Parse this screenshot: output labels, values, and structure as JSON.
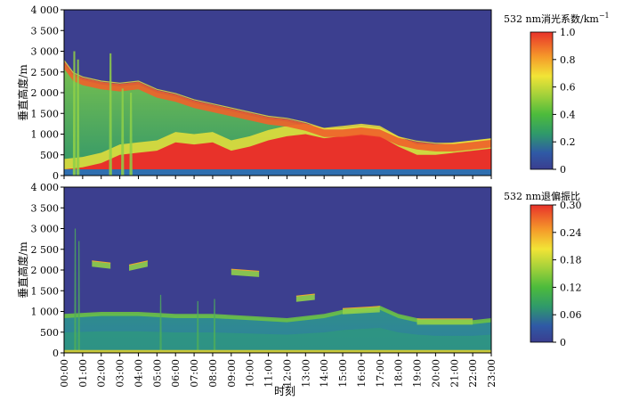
{
  "chart_data": [
    {
      "type": "heatmap",
      "title": "532 nm消光系数/km⁻¹",
      "xlabel": "",
      "ylabel": "垂直高度/m",
      "x_ticks": [
        "00:00",
        "01:00",
        "02:00",
        "03:00",
        "04:00",
        "05:00",
        "06:00",
        "07:00",
        "08:00",
        "09:00",
        "10:00",
        "11:00",
        "12:00",
        "13:00",
        "14:00",
        "15:00",
        "16:00",
        "17:00",
        "18:00",
        "19:00",
        "20:00",
        "21:00",
        "22:00",
        "23:00"
      ],
      "xlim": [
        0,
        23
      ],
      "y_ticks": [
        0,
        500,
        1000,
        1500,
        2000,
        2500,
        3000,
        3500,
        4000
      ],
      "y_tick_labels": [
        "0",
        "500",
        "1 000",
        "1 500",
        "2 000",
        "2 500",
        "3 000",
        "3 500",
        "4 000"
      ],
      "ylim": [
        0,
        4000
      ],
      "colorbar": {
        "label": "532 nm消光系数/km",
        "label_superscript": "−1",
        "range": [
          0,
          1.0
        ],
        "ticks": [
          "0",
          "0.2",
          "0.4",
          "0.6",
          "0.8",
          "1.0"
        ]
      },
      "features": {
        "aerosol_layer_top_m": [
          [
            0,
            2700
          ],
          [
            0.5,
            2400
          ],
          [
            1,
            2300
          ],
          [
            2,
            2200
          ],
          [
            3,
            2150
          ],
          [
            4,
            2200
          ],
          [
            5,
            2000
          ],
          [
            6,
            1900
          ],
          [
            7,
            1750
          ],
          [
            8,
            1650
          ],
          [
            9,
            1550
          ],
          [
            10,
            1450
          ],
          [
            11,
            1350
          ],
          [
            12,
            1300
          ],
          [
            13,
            1200
          ],
          [
            14,
            1050
          ],
          [
            15,
            1050
          ],
          [
            16,
            1100
          ],
          [
            17,
            1050
          ],
          [
            18,
            850
          ],
          [
            19,
            750
          ],
          [
            20,
            700
          ],
          [
            21,
            700
          ],
          [
            22,
            750
          ],
          [
            23,
            800
          ]
        ],
        "dense_layer_top_m": [
          [
            0,
            150
          ],
          [
            1,
            200
          ],
          [
            2,
            300
          ],
          [
            3,
            500
          ],
          [
            4,
            550
          ],
          [
            5,
            600
          ],
          [
            6,
            800
          ],
          [
            7,
            750
          ],
          [
            8,
            800
          ],
          [
            9,
            600
          ],
          [
            10,
            700
          ],
          [
            11,
            850
          ],
          [
            12,
            950
          ],
          [
            13,
            1000
          ],
          [
            14,
            900
          ],
          [
            15,
            950
          ],
          [
            16,
            1000
          ],
          [
            17,
            950
          ],
          [
            18,
            700
          ],
          [
            19,
            500
          ],
          [
            20,
            500
          ],
          [
            21,
            550
          ],
          [
            22,
            600
          ],
          [
            23,
            650
          ]
        ]
      }
    },
    {
      "type": "heatmap",
      "title": "532 nm退偏振比",
      "xlabel": "时刻",
      "ylabel": "垂直高度/m",
      "x_ticks": [
        "00:00",
        "01:00",
        "02:00",
        "03:00",
        "04:00",
        "05:00",
        "06:00",
        "07:00",
        "08:00",
        "09:00",
        "10:00",
        "11:00",
        "12:00",
        "13:00",
        "14:00",
        "15:00",
        "16:00",
        "17:00",
        "18:00",
        "19:00",
        "20:00",
        "21:00",
        "22:00",
        "23:00"
      ],
      "xlim": [
        0,
        23
      ],
      "y_ticks": [
        0,
        500,
        1000,
        1500,
        2000,
        2500,
        3000,
        3500,
        4000
      ],
      "y_tick_labels": [
        "0",
        "500",
        "1 000",
        "1 500",
        "2 000",
        "2 500",
        "3 000",
        "3 500",
        "4 000"
      ],
      "ylim": [
        0,
        4000
      ],
      "colorbar": {
        "label": "532 nm退偏振比",
        "range": [
          0,
          0.3
        ],
        "ticks": [
          "0",
          "0.06",
          "0.12",
          "0.18",
          "0.24",
          "0.30"
        ]
      },
      "features": {
        "mixed_layer_top_m": [
          [
            0,
            900
          ],
          [
            2,
            950
          ],
          [
            4,
            950
          ],
          [
            6,
            900
          ],
          [
            8,
            900
          ],
          [
            10,
            850
          ],
          [
            12,
            800
          ],
          [
            14,
            900
          ],
          [
            15,
            1000
          ],
          [
            16,
            1050
          ],
          [
            17,
            1100
          ],
          [
            18,
            900
          ],
          [
            19,
            800
          ],
          [
            20,
            750
          ],
          [
            21,
            750
          ],
          [
            22,
            750
          ],
          [
            23,
            800
          ]
        ],
        "elevated_layer_m": [
          [
            1.5,
            2150
          ],
          [
            2.5,
            2100
          ],
          [
            3.5,
            2050
          ],
          [
            4.5,
            2150
          ],
          [
            9,
            1950
          ],
          [
            10.5,
            1900
          ],
          [
            12.5,
            1300
          ],
          [
            13.5,
            1350
          ],
          [
            15,
            1000
          ],
          [
            17,
            1050
          ],
          [
            19,
            750
          ],
          [
            22,
            750
          ]
        ]
      }
    }
  ]
}
